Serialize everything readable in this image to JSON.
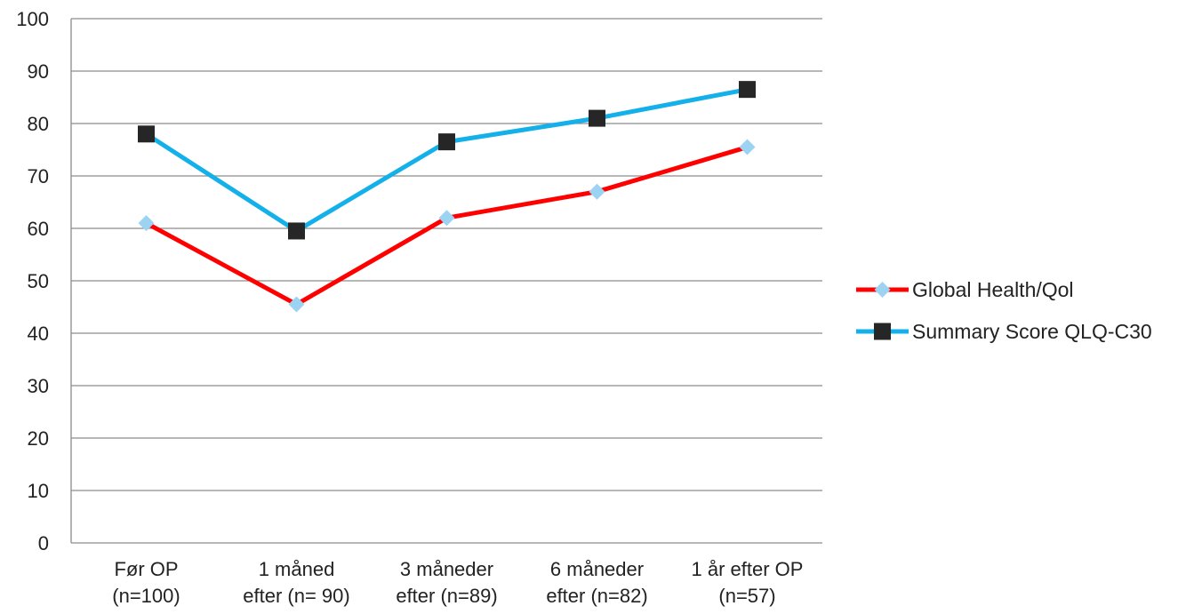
{
  "chart_data": {
    "type": "line",
    "title": "",
    "xlabel": "",
    "ylabel": "",
    "ylim": [
      0,
      100
    ],
    "yticks": [
      0,
      10,
      20,
      30,
      40,
      50,
      60,
      70,
      80,
      90,
      100
    ],
    "grid": true,
    "legend_position": "right",
    "categories": [
      [
        "Før OP",
        "(n=100)"
      ],
      [
        "1 måned",
        "efter (n= 90)"
      ],
      [
        "3 måneder",
        "efter (n=89)"
      ],
      [
        "6 måneder",
        "efter (n=82)"
      ],
      [
        "1 år efter OP",
        "(n=57)"
      ]
    ],
    "series": [
      {
        "name": "Global Health/Qol",
        "values": [
          61,
          45.5,
          62,
          67,
          75.5
        ],
        "line_color": "#ff0000",
        "marker": "diamond",
        "marker_color": "#9dd3f2"
      },
      {
        "name": "Summary Score QLQ-C30",
        "values": [
          78,
          59.5,
          76.5,
          81,
          86.5
        ],
        "line_color": "#14b0ea",
        "marker": "square",
        "marker_color": "#262626"
      }
    ]
  }
}
